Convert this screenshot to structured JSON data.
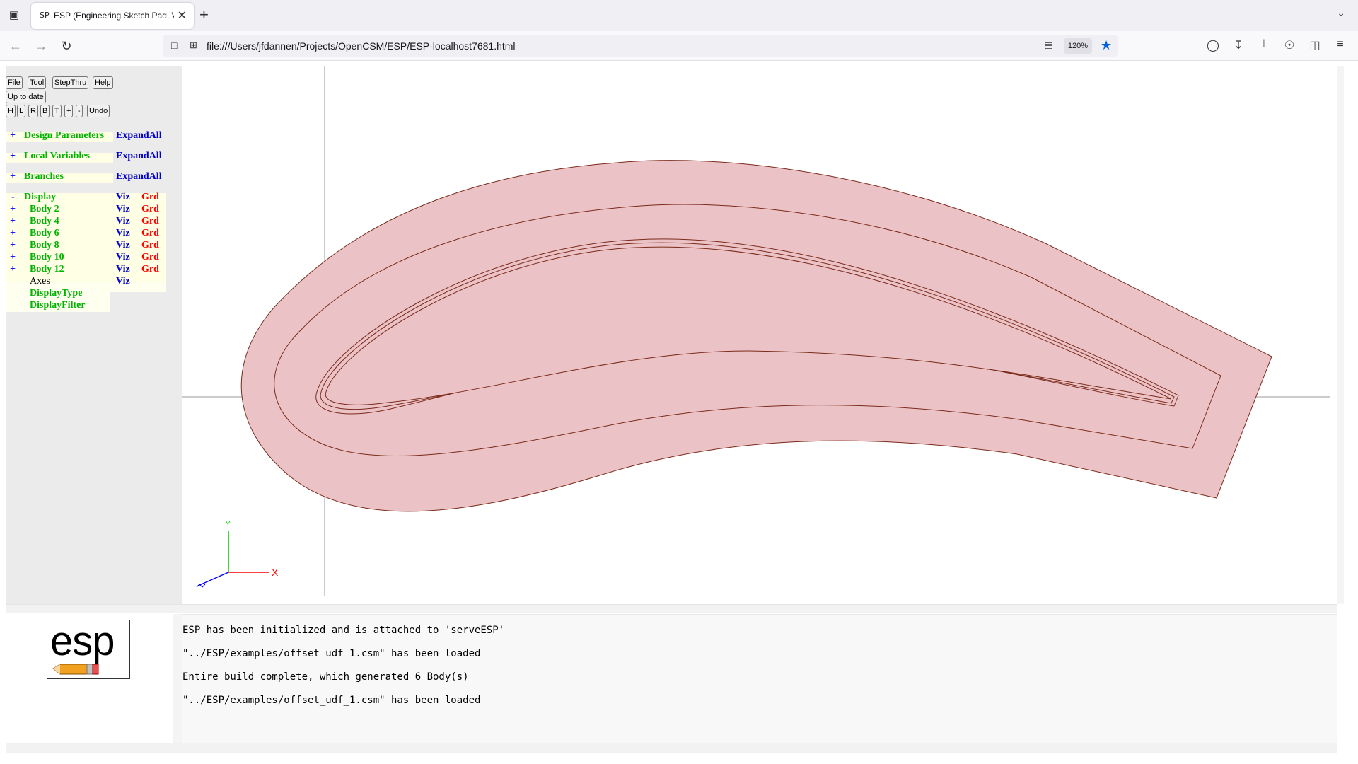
{
  "browser": {
    "tab_title": "ESP (Engineering Sketch Pad, V",
    "tab_favicon": "SP",
    "url": "file:///Users/jfdannen/Projects/OpenCSM/ESP/ESP-localhost7681.html",
    "zoom": "120%",
    "icons": [
      "tab-list-icon",
      "close-icon",
      "plus-icon",
      "chevron-down-icon",
      "back-icon",
      "forward-icon",
      "reload-icon",
      "page-icon",
      "permissions-icon",
      "reader-view-icon",
      "star-icon",
      "pocket-icon",
      "download-icon",
      "library-icon",
      "account-icon",
      "extensions-icon",
      "menu-icon"
    ]
  },
  "toolbar": {
    "file": "File",
    "tool": "Tool",
    "stepthru": "StepThru",
    "help": "Help",
    "status": "Up to date",
    "view_h": "H",
    "view_l": "L",
    "view_r": "R",
    "view_b": "B",
    "view_t": "T",
    "zoom_in": "+",
    "zoom_out": "-",
    "undo": "Undo"
  },
  "tree": {
    "design_parameters": {
      "toggle": "+",
      "label": "Design Parameters",
      "action": "ExpandAll"
    },
    "local_variables": {
      "toggle": "+",
      "label": "Local Variables",
      "action": "ExpandAll"
    },
    "branches": {
      "toggle": "+",
      "label": "Branches",
      "action": "ExpandAll"
    },
    "display": {
      "toggle": "-",
      "label": "Display",
      "viz": "Viz",
      "grd": "Grd"
    },
    "bodies": [
      {
        "toggle": "+",
        "label": "Body 2",
        "viz": "Viz",
        "grd": "Grd"
      },
      {
        "toggle": "+",
        "label": "Body 4",
        "viz": "Viz",
        "grd": "Grd"
      },
      {
        "toggle": "+",
        "label": "Body 6",
        "viz": "Viz",
        "grd": "Grd"
      },
      {
        "toggle": "+",
        "label": "Body 8",
        "viz": "Viz",
        "grd": "Grd"
      },
      {
        "toggle": "+",
        "label": "Body 10",
        "viz": "Viz",
        "grd": "Grd"
      },
      {
        "toggle": "+",
        "label": "Body 12",
        "viz": "Viz",
        "grd": "Grd"
      }
    ],
    "axes": {
      "label": "Axes",
      "viz": "Viz"
    },
    "display_type": "DisplayType",
    "display_filter": "DisplayFilter"
  },
  "graphics": {
    "fill_color": "#ebc3c6",
    "edge_color": "#7a2a1a",
    "axis_labels": {
      "y": "Y",
      "x": "X"
    }
  },
  "logo": {
    "text": "esp"
  },
  "messages": [
    "ESP has been initialized and is attached to 'serveESP'",
    "\"../ESP/examples/offset_udf_1.csm\" has been loaded",
    "Entire build complete, which generated 6 Body(s)",
    "\"../ESP/examples/offset_udf_1.csm\" has been loaded"
  ]
}
